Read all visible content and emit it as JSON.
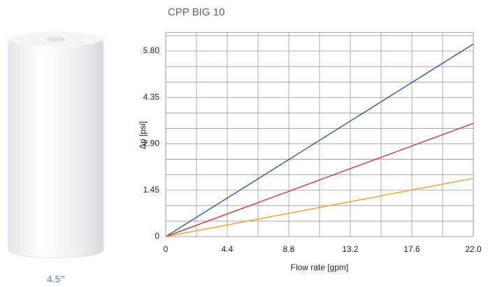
{
  "chart_data": {
    "type": "line",
    "title": "CPP BIG 10",
    "x_label": "Flow rate [gpm]",
    "y_label": "Δp [psi]",
    "x": [
      0,
      22
    ],
    "series": [
      {
        "color": "#1f4e9a",
        "values": [
          0,
          6.02
        ]
      },
      {
        "color": "#d9262c",
        "values": [
          0,
          3.54
        ]
      },
      {
        "color": "#f39a1e",
        "values": [
          0,
          1.82
        ]
      }
    ],
    "xlim": [
      0,
      22
    ],
    "ylim": [
      0,
      6.38
    ],
    "xticks": [
      0,
      4.4,
      8.8,
      13.2,
      17.6,
      {
        "value": 22,
        "label": "22.0"
      }
    ],
    "yticks": [
      0,
      1.45,
      {
        "value": 2.9,
        "label": "2.90"
      },
      4.35,
      {
        "value": 5.8,
        "label": "5.80"
      }
    ],
    "grid": true,
    "x_minor": 2,
    "y_minor": 3
  },
  "product": {
    "size_label": "4.5”"
  }
}
